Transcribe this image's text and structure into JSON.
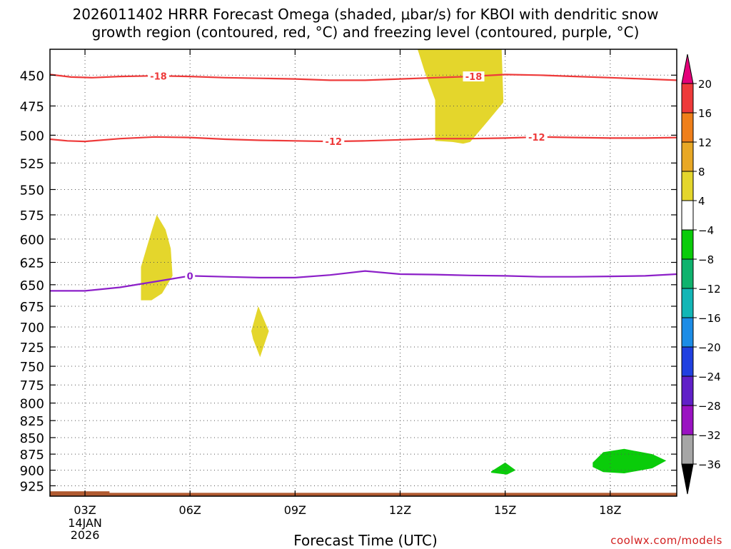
{
  "header": {
    "title_line1": "2026011402 HRRR Forecast Omega (shaded, μbar/s) for KBOI with dendritic snow",
    "title_line2": "growth region (contoured, red, °C) and freezing level (contoured, purple, °C)"
  },
  "footer": {
    "xlabel": "Forecast Time (UTC)",
    "credit": "coolwx.com/models"
  },
  "chart_data": {
    "type": "contour",
    "x_axis": {
      "ticks": [
        3,
        6,
        9,
        12,
        15,
        18
      ],
      "tick_labels": [
        "03Z",
        "06Z",
        "09Z",
        "12Z",
        "15Z",
        "18Z"
      ],
      "date_label": [
        "14JAN",
        "2026"
      ],
      "range_hours": [
        2,
        19.9
      ]
    },
    "y_axis": {
      "ticks": [
        450,
        475,
        500,
        525,
        550,
        575,
        600,
        625,
        650,
        675,
        700,
        725,
        750,
        775,
        800,
        825,
        850,
        875,
        900,
        925
      ],
      "range_hpa": [
        430,
        942
      ],
      "scale": "log"
    },
    "colorbar": {
      "labels": [
        "20",
        "16",
        "12",
        "8",
        "4",
        "−4",
        "−8",
        "−12",
        "−16",
        "−20",
        "−24",
        "−28",
        "−32",
        "−36"
      ],
      "top_color": "#e4007a",
      "bottom_color": "#000000",
      "colors": [
        "#ee3a3a",
        "#ef7f1a",
        "#e8a825",
        "#e4d62c",
        "#ffffff",
        "#0acc0a",
        "#0fb36e",
        "#12b6b6",
        "#1c8ce6",
        "#2040e0",
        "#6020c8",
        "#9a12c2",
        "#a6a6a6"
      ]
    },
    "contours": [
      {
        "name": "-18 °C",
        "label": "-18",
        "color": "#ee3a3a",
        "points": [
          [
            2,
            449.5
          ],
          [
            2.6,
            451.5
          ],
          [
            3.2,
            452
          ],
          [
            4,
            451
          ],
          [
            5,
            450.5
          ],
          [
            6,
            451
          ],
          [
            7,
            452
          ],
          [
            8,
            452.5
          ],
          [
            9,
            453
          ],
          [
            10,
            454
          ],
          [
            11,
            454
          ],
          [
            12,
            453
          ],
          [
            13,
            452
          ],
          [
            14,
            451
          ],
          [
            15,
            449.5
          ],
          [
            16,
            450
          ],
          [
            17,
            451
          ],
          [
            18,
            452
          ],
          [
            19,
            453
          ],
          [
            19.9,
            454
          ]
        ],
        "labels_at": [
          [
            5.1,
            450.7
          ],
          [
            14.1,
            451
          ]
        ]
      },
      {
        "name": "-12 °C",
        "label": "-12",
        "color": "#ee3a3a",
        "points": [
          [
            2,
            503.5
          ],
          [
            2.5,
            505
          ],
          [
            3,
            505.5
          ],
          [
            4,
            503
          ],
          [
            5,
            501.5
          ],
          [
            6,
            502
          ],
          [
            7,
            503.5
          ],
          [
            8,
            504.5
          ],
          [
            9,
            505
          ],
          [
            10,
            505.5
          ],
          [
            11,
            505
          ],
          [
            12,
            504
          ],
          [
            13,
            503
          ],
          [
            14,
            503
          ],
          [
            15,
            502.5
          ],
          [
            16,
            501.5
          ],
          [
            17,
            502
          ],
          [
            18,
            502.5
          ],
          [
            19,
            502.5
          ],
          [
            19.9,
            502
          ]
        ],
        "labels_at": [
          [
            10.1,
            505.5
          ],
          [
            15.9,
            501.5
          ]
        ]
      },
      {
        "name": "0 °C",
        "label": "0",
        "color": "#8c1fc8",
        "points": [
          [
            2,
            657
          ],
          [
            3,
            657
          ],
          [
            4,
            653
          ],
          [
            5,
            646.5
          ],
          [
            6,
            640
          ],
          [
            7,
            641
          ],
          [
            8,
            642
          ],
          [
            9,
            642
          ],
          [
            10,
            639
          ],
          [
            11,
            634.5
          ],
          [
            12,
            638
          ],
          [
            13,
            638.5
          ],
          [
            14,
            639.5
          ],
          [
            15,
            640
          ],
          [
            16,
            641
          ],
          [
            17,
            641
          ],
          [
            18,
            640.5
          ],
          [
            19,
            640
          ],
          [
            19.9,
            638
          ]
        ],
        "labels_at": [
          [
            6,
            640
          ]
        ]
      }
    ],
    "shaded": [
      {
        "value": "4 to 8",
        "color": "#e4d62c",
        "polygon": [
          [
            12.5,
            430
          ],
          [
            14.9,
            430
          ],
          [
            14.95,
            472
          ],
          [
            14.5,
            488
          ],
          [
            14.0,
            506
          ],
          [
            13.8,
            507.5
          ],
          [
            13.5,
            506
          ],
          [
            13.0,
            505
          ],
          [
            13.0,
            470
          ],
          [
            12.9,
            462
          ],
          [
            12.7,
            447
          ],
          [
            12.5,
            430
          ]
        ]
      },
      {
        "value": "4 to 8",
        "color": "#e4d62c",
        "polygon": [
          [
            4.6,
            668
          ],
          [
            4.6,
            630
          ],
          [
            4.9,
            592
          ],
          [
            5.05,
            575
          ],
          [
            5.3,
            590
          ],
          [
            5.45,
            610
          ],
          [
            5.5,
            640
          ],
          [
            5.2,
            660
          ],
          [
            4.9,
            668
          ]
        ]
      },
      {
        "value": "4 to 8",
        "color": "#e4d62c",
        "polygon": [
          [
            7.95,
            675
          ],
          [
            8.25,
            705
          ],
          [
            8.0,
            738
          ],
          [
            7.8,
            715
          ],
          [
            7.75,
            705
          ]
        ]
      },
      {
        "value": "-4 to -8",
        "color": "#0acc0a",
        "polygon": [
          [
            14.6,
            902
          ],
          [
            15.0,
            888
          ],
          [
            15.3,
            900
          ],
          [
            15.05,
            907
          ],
          [
            14.6,
            904
          ]
        ]
      },
      {
        "value": "-4 to -8",
        "color": "#0acc0a",
        "polygon": [
          [
            17.5,
            888
          ],
          [
            17.8,
            872
          ],
          [
            18.4,
            867
          ],
          [
            19.2,
            875
          ],
          [
            19.6,
            885
          ],
          [
            19.2,
            897
          ],
          [
            18.4,
            905
          ],
          [
            17.8,
            903
          ],
          [
            17.5,
            895
          ]
        ]
      }
    ],
    "terrain": {
      "color": "#b05a30",
      "top_hpa": 936.5,
      "bump": {
        "x": [
          2,
          3.7
        ],
        "top_hpa": 934
      }
    }
  }
}
